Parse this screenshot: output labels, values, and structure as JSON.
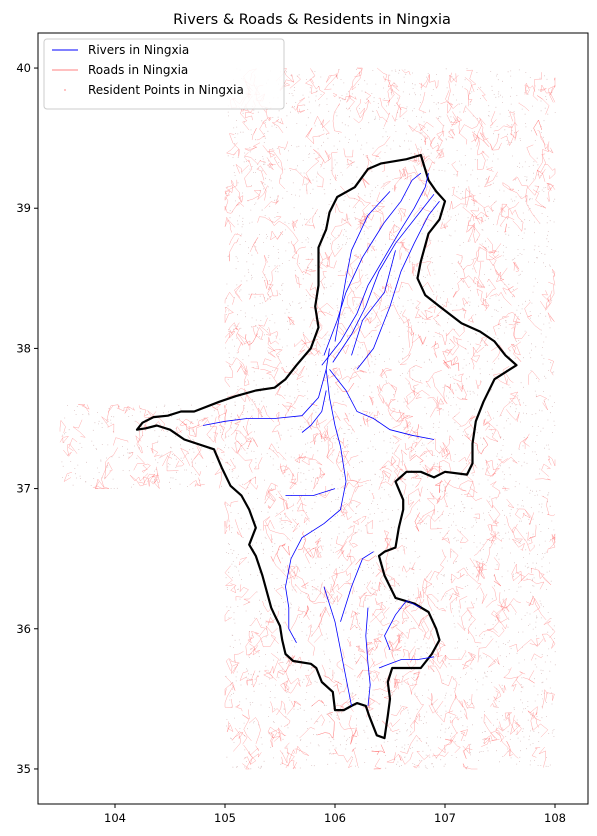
{
  "title": "Rivers & Roads & Residents in Ningxia",
  "axes": {
    "x_ticks": [
      "104",
      "105",
      "106",
      "107",
      "108"
    ],
    "y_ticks": [
      "35",
      "36",
      "37",
      "38",
      "39",
      "40"
    ],
    "xlim": [
      103.3,
      108.3
    ],
    "ylim": [
      34.75,
      40.25
    ]
  },
  "legend": {
    "position": "upper-left",
    "items": [
      {
        "label": "Rivers in Ningxia",
        "color": "#0000ff",
        "kind": "line"
      },
      {
        "label": "Roads in Ningxia",
        "color": "#ff8080",
        "kind": "line"
      },
      {
        "label": "Resident Points in Ningxia",
        "color": "#ff9999",
        "kind": "dot"
      }
    ]
  },
  "chart_data": {
    "type": "map",
    "title": "Rivers & Roads & Residents in Ningxia",
    "xlabel": "",
    "ylabel": "",
    "xlim": [
      103.3,
      108.3
    ],
    "ylim": [
      34.75,
      40.25
    ],
    "colors": {
      "boundary": "#000000",
      "rivers": "#0000ff",
      "roads": "#ff6666",
      "residents": "#b08080"
    },
    "data_extent": [
      {
        "lon": [
          103.5,
          105.0
        ],
        "lat": [
          37.0,
          37.6
        ]
      },
      {
        "lon": [
          105.0,
          108.0
        ],
        "lat": [
          35.0,
          40.0
        ]
      }
    ],
    "boundary": [
      [
        106.45,
        35.22
      ],
      [
        106.38,
        35.24
      ],
      [
        106.31,
        35.38
      ],
      [
        106.28,
        35.45
      ],
      [
        106.2,
        35.47
      ],
      [
        106.15,
        35.45
      ],
      [
        106.08,
        35.42
      ],
      [
        106.0,
        35.42
      ],
      [
        105.98,
        35.55
      ],
      [
        105.88,
        35.62
      ],
      [
        105.83,
        35.72
      ],
      [
        105.78,
        35.75
      ],
      [
        105.62,
        35.77
      ],
      [
        105.55,
        35.82
      ],
      [
        105.52,
        35.92
      ],
      [
        105.5,
        36.02
      ],
      [
        105.45,
        36.1
      ],
      [
        105.42,
        36.15
      ],
      [
        105.34,
        36.38
      ],
      [
        105.28,
        36.52
      ],
      [
        105.22,
        36.6
      ],
      [
        105.28,
        36.72
      ],
      [
        105.22,
        36.85
      ],
      [
        105.15,
        36.95
      ],
      [
        105.05,
        37.02
      ],
      [
        104.97,
        37.15
      ],
      [
        104.9,
        37.28
      ],
      [
        104.63,
        37.35
      ],
      [
        104.5,
        37.42
      ],
      [
        104.38,
        37.45
      ],
      [
        104.28,
        37.43
      ],
      [
        104.2,
        37.42
      ],
      [
        104.25,
        37.47
      ],
      [
        104.35,
        37.51
      ],
      [
        104.48,
        37.52
      ],
      [
        104.6,
        37.55
      ],
      [
        104.72,
        37.55
      ],
      [
        104.95,
        37.62
      ],
      [
        105.1,
        37.66
      ],
      [
        105.28,
        37.7
      ],
      [
        105.45,
        37.72
      ],
      [
        105.55,
        37.78
      ],
      [
        105.65,
        37.88
      ],
      [
        105.78,
        38.0
      ],
      [
        105.85,
        38.15
      ],
      [
        105.82,
        38.3
      ],
      [
        105.85,
        38.45
      ],
      [
        105.85,
        38.6
      ],
      [
        105.85,
        38.72
      ],
      [
        105.92,
        38.85
      ],
      [
        105.95,
        38.97
      ],
      [
        106.02,
        39.08
      ],
      [
        106.18,
        39.15
      ],
      [
        106.3,
        39.28
      ],
      [
        106.42,
        39.32
      ],
      [
        106.65,
        39.35
      ],
      [
        106.78,
        39.38
      ],
      [
        106.85,
        39.2
      ],
      [
        106.92,
        39.12
      ],
      [
        107.0,
        39.05
      ],
      [
        106.95,
        38.92
      ],
      [
        106.85,
        38.82
      ],
      [
        106.78,
        38.62
      ],
      [
        106.75,
        38.5
      ],
      [
        106.82,
        38.38
      ],
      [
        106.95,
        38.3
      ],
      [
        107.15,
        38.18
      ],
      [
        107.32,
        38.12
      ],
      [
        107.45,
        38.05
      ],
      [
        107.55,
        37.95
      ],
      [
        107.65,
        37.88
      ],
      [
        107.45,
        37.78
      ],
      [
        107.35,
        37.62
      ],
      [
        107.28,
        37.48
      ],
      [
        107.25,
        37.32
      ],
      [
        107.25,
        37.18
      ],
      [
        107.2,
        37.1
      ],
      [
        107.0,
        37.12
      ],
      [
        106.9,
        37.08
      ],
      [
        106.78,
        37.12
      ],
      [
        106.65,
        37.12
      ],
      [
        106.55,
        37.05
      ],
      [
        106.62,
        36.92
      ],
      [
        106.62,
        36.85
      ],
      [
        106.58,
        36.72
      ],
      [
        106.55,
        36.58
      ],
      [
        106.45,
        36.55
      ],
      [
        106.4,
        36.52
      ],
      [
        106.45,
        36.38
      ],
      [
        106.5,
        36.3
      ],
      [
        106.55,
        36.22
      ],
      [
        106.72,
        36.18
      ],
      [
        106.85,
        36.12
      ],
      [
        106.92,
        36.0
      ],
      [
        106.95,
        35.92
      ],
      [
        106.88,
        35.82
      ],
      [
        106.78,
        35.72
      ],
      [
        106.52,
        35.72
      ],
      [
        106.48,
        35.62
      ],
      [
        106.5,
        35.5
      ],
      [
        106.48,
        35.38
      ],
      [
        106.45,
        35.22
      ]
    ],
    "rivers": [
      [
        [
          106.4,
          35.72
        ],
        [
          106.5,
          35.75
        ],
        [
          106.6,
          35.78
        ],
        [
          106.75,
          35.78
        ],
        [
          106.9,
          35.8
        ]
      ],
      [
        [
          106.3,
          35.45
        ],
        [
          106.32,
          35.6
        ],
        [
          106.3,
          35.75
        ],
        [
          106.28,
          35.95
        ],
        [
          106.3,
          36.15
        ]
      ],
      [
        [
          105.9,
          36.3
        ],
        [
          106.0,
          36.05
        ],
        [
          106.05,
          35.85
        ],
        [
          106.1,
          35.65
        ],
        [
          106.15,
          35.45
        ]
      ],
      [
        [
          106.05,
          36.05
        ],
        [
          106.15,
          36.3
        ],
        [
          106.25,
          36.5
        ],
        [
          106.35,
          36.55
        ]
      ],
      [
        [
          106.5,
          35.85
        ],
        [
          106.45,
          35.95
        ],
        [
          106.55,
          36.1
        ],
        [
          106.65,
          36.2
        ],
        [
          106.78,
          36.15
        ]
      ],
      [
        [
          105.65,
          35.9
        ],
        [
          105.58,
          36.0
        ],
        [
          105.58,
          36.15
        ],
        [
          105.55,
          36.3
        ],
        [
          105.6,
          36.5
        ],
        [
          105.7,
          36.65
        ],
        [
          105.9,
          36.75
        ],
        [
          106.05,
          36.85
        ],
        [
          106.1,
          37.05
        ],
        [
          106.05,
          37.3
        ],
        [
          106.0,
          37.45
        ],
        [
          105.95,
          37.65
        ],
        [
          105.92,
          37.85
        ]
      ],
      [
        [
          105.7,
          37.4
        ],
        [
          105.78,
          37.45
        ],
        [
          105.88,
          37.55
        ],
        [
          105.92,
          37.7
        ]
      ],
      [
        [
          105.55,
          36.95
        ],
        [
          105.8,
          36.95
        ],
        [
          106.0,
          37.0
        ]
      ],
      [
        [
          106.9,
          37.35
        ],
        [
          106.7,
          37.38
        ],
        [
          106.5,
          37.42
        ],
        [
          106.35,
          37.5
        ],
        [
          106.2,
          37.55
        ],
        [
          106.1,
          37.7
        ],
        [
          105.95,
          37.85
        ]
      ],
      [
        [
          104.8,
          37.45
        ],
        [
          105.0,
          37.48
        ],
        [
          105.2,
          37.5
        ],
        [
          105.45,
          37.5
        ],
        [
          105.7,
          37.52
        ],
        [
          105.85,
          37.65
        ],
        [
          105.92,
          37.85
        ],
        [
          105.95,
          38.0
        ]
      ],
      [
        [
          105.88,
          37.88
        ],
        [
          106.05,
          38.05
        ],
        [
          106.2,
          38.25
        ],
        [
          106.3,
          38.45
        ],
        [
          106.45,
          38.65
        ],
        [
          106.6,
          38.85
        ],
        [
          106.72,
          39.0
        ],
        [
          106.82,
          39.15
        ],
        [
          106.85,
          39.25
        ]
      ],
      [
        [
          105.9,
          37.95
        ],
        [
          106.02,
          38.2
        ],
        [
          106.1,
          38.4
        ],
        [
          106.25,
          38.65
        ],
        [
          106.45,
          38.9
        ],
        [
          106.6,
          39.05
        ],
        [
          106.7,
          39.2
        ],
        [
          106.78,
          39.25
        ]
      ],
      [
        [
          105.98,
          37.9
        ],
        [
          106.15,
          38.1
        ],
        [
          106.28,
          38.3
        ],
        [
          106.4,
          38.55
        ],
        [
          106.55,
          38.75
        ],
        [
          106.75,
          38.95
        ],
        [
          106.9,
          39.1
        ]
      ],
      [
        [
          106.2,
          37.85
        ],
        [
          106.35,
          38.0
        ],
        [
          106.5,
          38.3
        ],
        [
          106.6,
          38.55
        ],
        [
          106.72,
          38.75
        ],
        [
          106.85,
          38.95
        ],
        [
          106.95,
          39.05
        ]
      ],
      [
        [
          106.0,
          38.05
        ],
        [
          106.1,
          38.5
        ],
        [
          106.15,
          38.7
        ],
        [
          106.3,
          38.95
        ],
        [
          106.5,
          39.12
        ]
      ],
      [
        [
          106.15,
          37.95
        ],
        [
          106.25,
          38.2
        ],
        [
          106.45,
          38.4
        ],
        [
          106.55,
          38.7
        ]
      ]
    ]
  }
}
